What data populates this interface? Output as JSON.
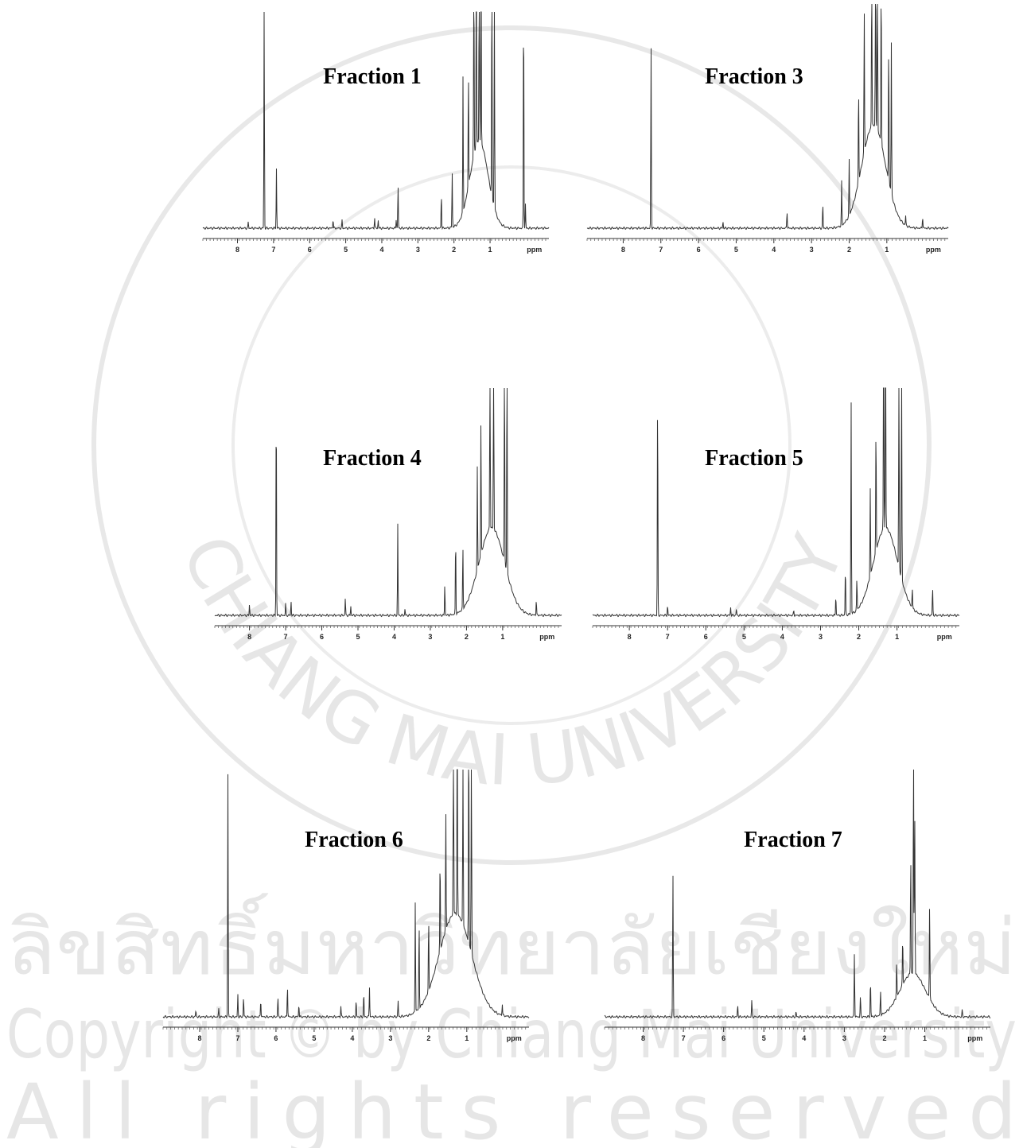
{
  "panels": [
    {
      "title": "Fraction 1",
      "ticks": [
        8,
        7,
        6,
        5,
        4,
        3,
        2,
        1
      ],
      "unit": "ppm"
    },
    {
      "title": "Fraction 3",
      "ticks": [
        8,
        7,
        6,
        5,
        4,
        3,
        2,
        1
      ],
      "unit": "ppm"
    },
    {
      "title": "Fraction 4",
      "ticks": [
        8,
        7,
        6,
        5,
        4,
        3,
        2,
        1
      ],
      "unit": "ppm"
    },
    {
      "title": "Fraction 5",
      "ticks": [
        8,
        7,
        6,
        5,
        4,
        3,
        2,
        1
      ],
      "unit": "ppm"
    },
    {
      "title": "Fraction 6",
      "ticks": [
        8,
        7,
        6,
        5,
        4,
        3,
        2,
        1
      ],
      "unit": "ppm"
    },
    {
      "title": "Fraction 7",
      "ticks": [
        8,
        7,
        6,
        5,
        4,
        3,
        2,
        1
      ],
      "unit": "ppm"
    }
  ],
  "watermark": {
    "seal": "CHIANG MAI UNIVERSITY",
    "thai": "ลิขสิทธิ์มหาวิทยาลัยเชียงใหม่",
    "copyright": "Copyright © by Chiang Mai University",
    "rights": "All rights reserved"
  }
}
